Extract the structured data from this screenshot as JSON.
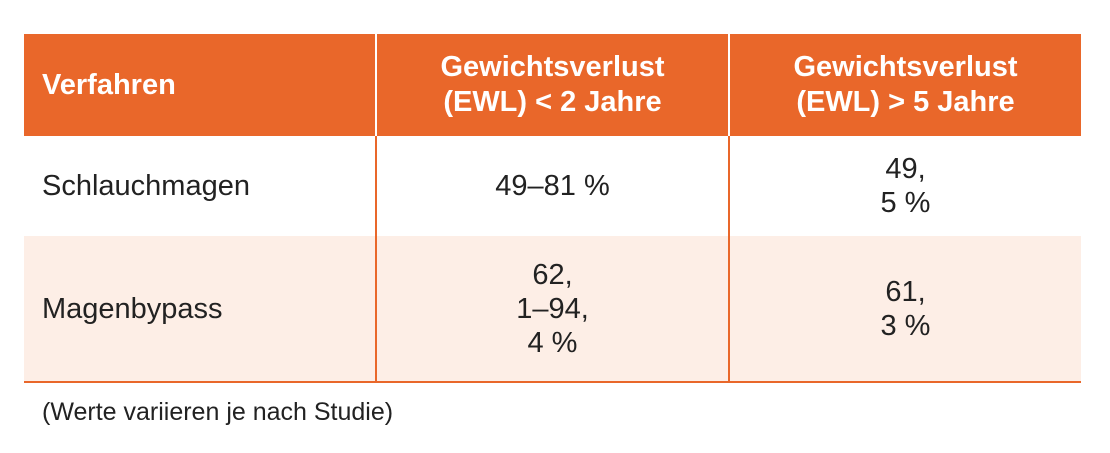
{
  "table": {
    "headers": [
      {
        "lines": [
          "Verfahren"
        ]
      },
      {
        "lines": [
          "Gewichtsverlust",
          "(EWL) < 2 Jahre"
        ]
      },
      {
        "lines": [
          "Gewichtsverlust",
          "(EWL) > 5 Jahre"
        ]
      }
    ],
    "rows": [
      {
        "procedure": "Schlauchmagen",
        "under_2_years": [
          "49–81 %"
        ],
        "over_5_years": [
          "49,",
          "5 %"
        ]
      },
      {
        "procedure": "Magenbypass",
        "under_2_years": [
          "62,",
          "1–94,",
          "4 %"
        ],
        "over_5_years": [
          "61,",
          "3 %"
        ]
      }
    ]
  },
  "footnote": "(Werte variieren je nach Studie)",
  "colors": {
    "accent": "#e9672a",
    "row_alt": "#fdeee6",
    "header_text": "#ffffff",
    "body_text": "#222222"
  }
}
